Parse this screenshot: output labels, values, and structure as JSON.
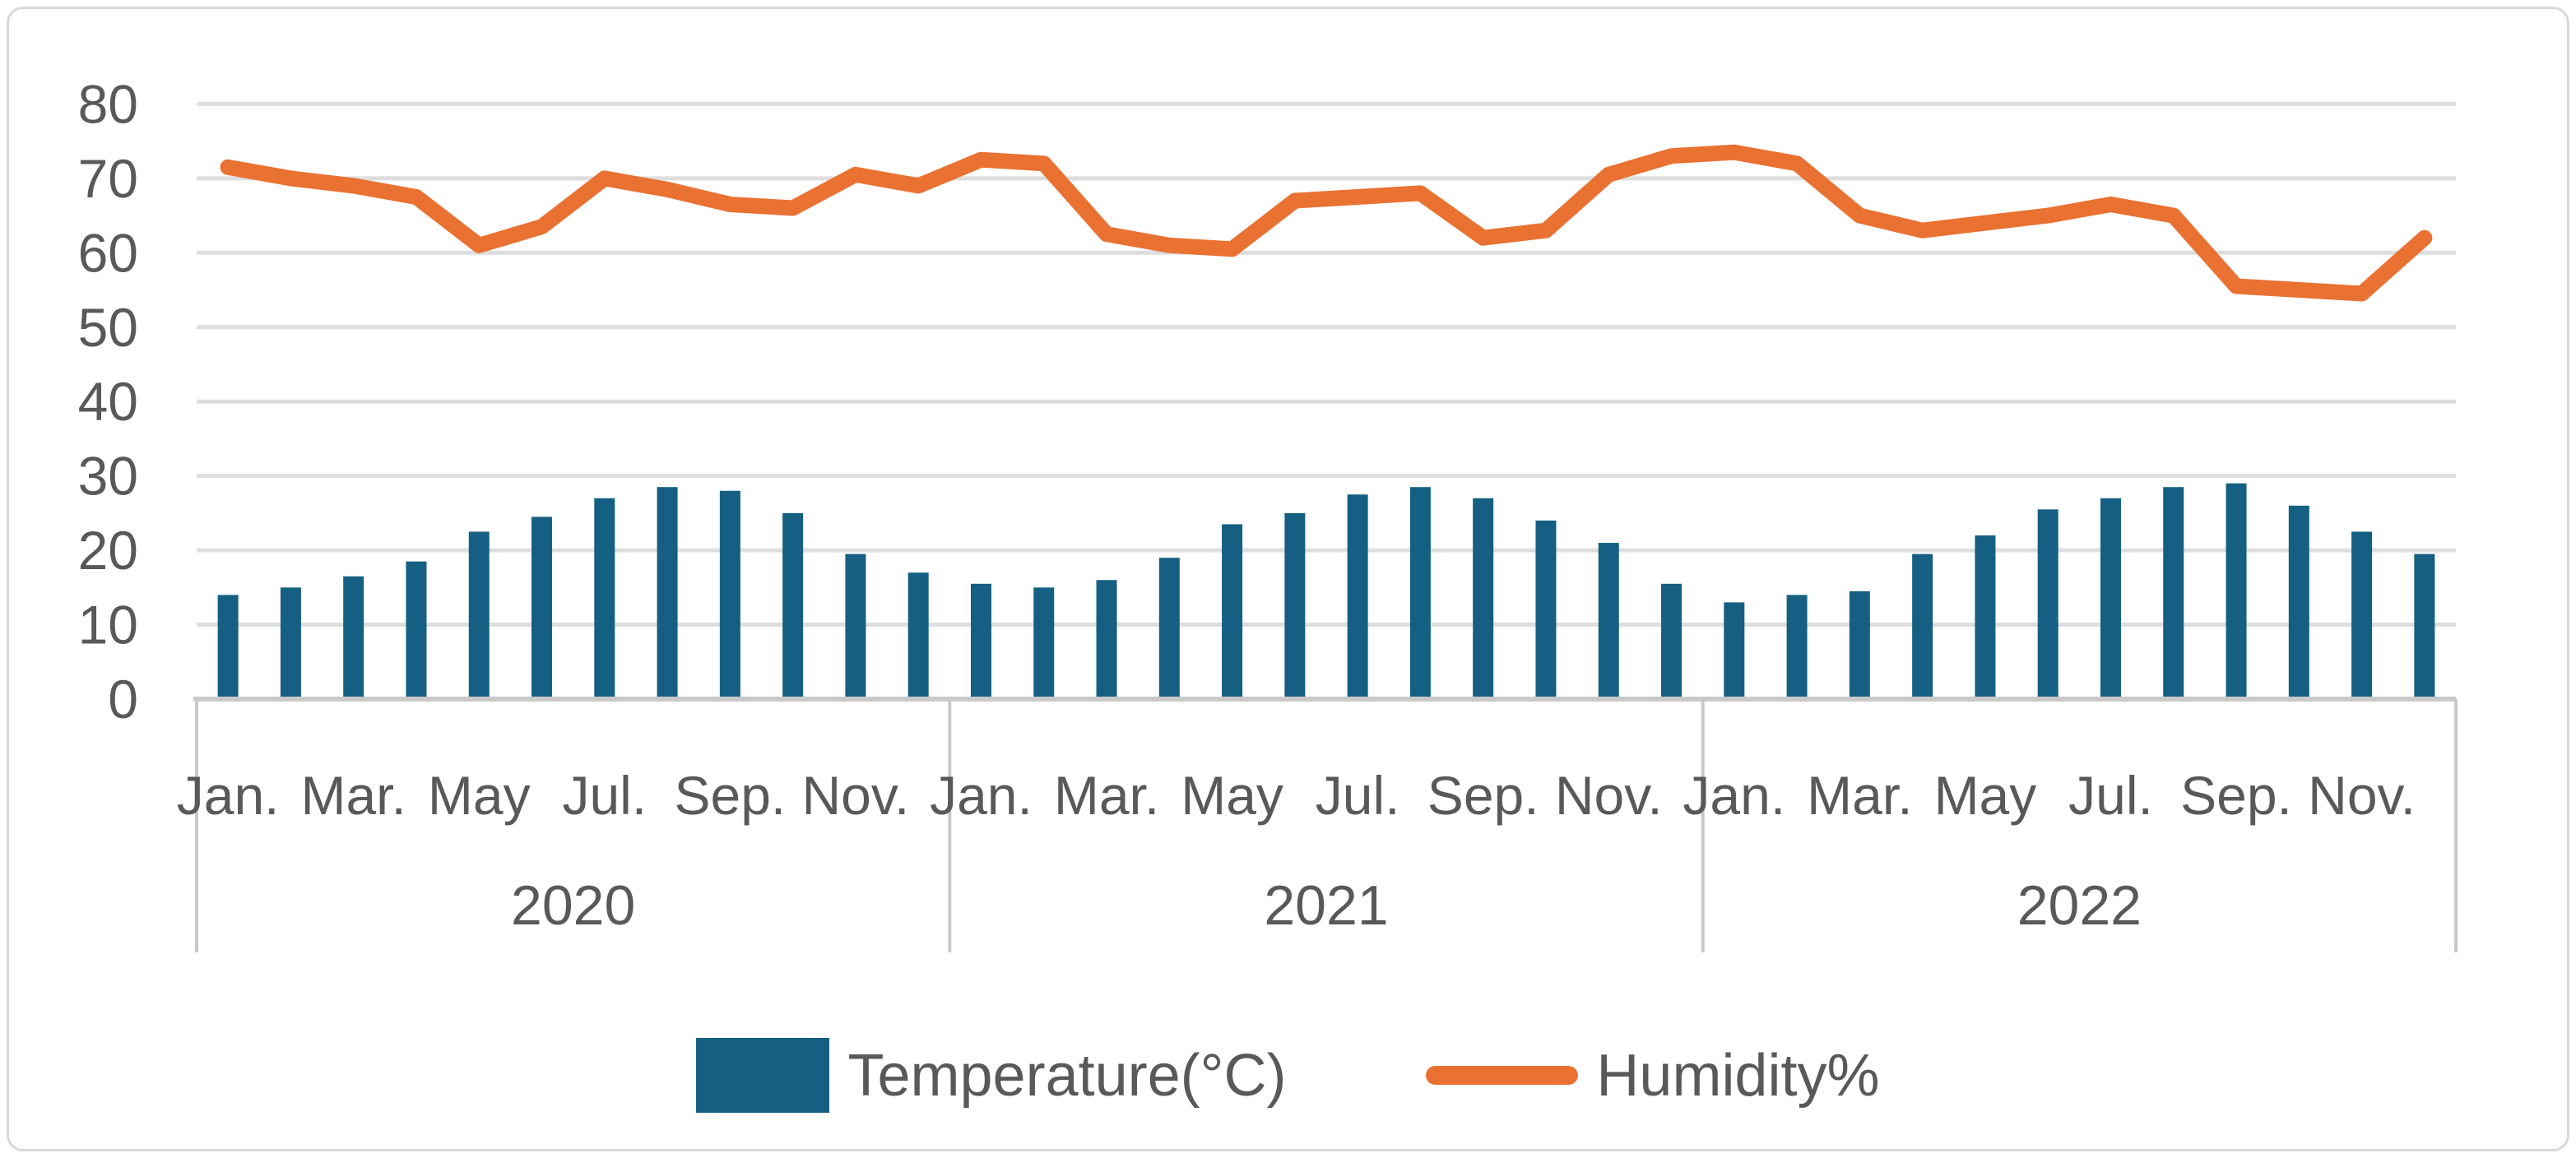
{
  "chart_data": {
    "type": "combo-bar-line",
    "title": "",
    "grid": true,
    "legend_position": "bottom",
    "y_axis": {
      "min": 0,
      "max": 80,
      "step": 10,
      "tick_labels": [
        "0",
        "10",
        "20",
        "30",
        "40",
        "50",
        "60",
        "70",
        "80"
      ]
    },
    "x_axis": {
      "years": [
        "2020",
        "2021",
        "2022"
      ],
      "months_per_year": 12,
      "month_labels": [
        "Jan.",
        "Mar.",
        "May",
        "Jul.",
        "Sep.",
        "Nov."
      ]
    },
    "series": [
      {
        "name": "Temperature(°C)",
        "type": "bar",
        "color": "#156082",
        "values": [
          14,
          15,
          16.5,
          18.5,
          22.5,
          24.5,
          27,
          28.5,
          28,
          25,
          19.5,
          17,
          15.5,
          15,
          16,
          19,
          23.5,
          25,
          27.5,
          28.5,
          27,
          24,
          21,
          15.5,
          13,
          14,
          14.5,
          19.5,
          22,
          25.5,
          27,
          28.5,
          29,
          26,
          22.5,
          19.5
        ]
      },
      {
        "name": "Humidity%",
        "type": "line",
        "color": "#E97132",
        "values": [
          71.5,
          70,
          69,
          67.5,
          61,
          63.5,
          70,
          68.5,
          66.5,
          66,
          70.5,
          69,
          72.5,
          72,
          62.5,
          61,
          60.5,
          67,
          67.5,
          68,
          62,
          63,
          70.5,
          73,
          73.5,
          72,
          65,
          63,
          64,
          65,
          66.5,
          65,
          55.5,
          55,
          54.5,
          62
        ]
      }
    ],
    "colors": {
      "gridline": "#DEDEDE",
      "axis": "#C9C9C9",
      "text": "#595959",
      "background": "#FFFFFF",
      "border": "#D9D9D9"
    }
  }
}
